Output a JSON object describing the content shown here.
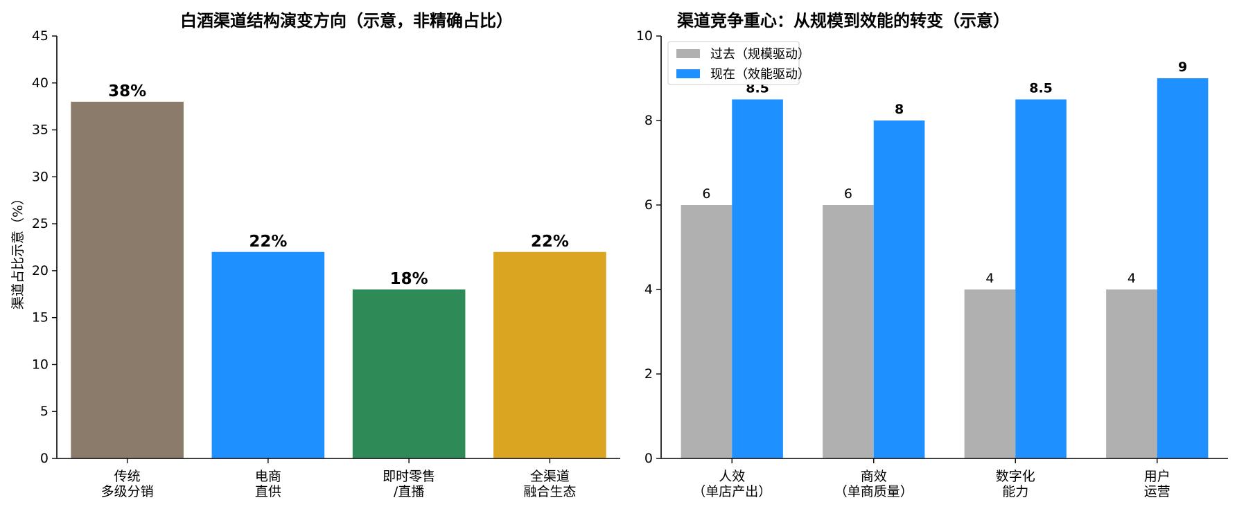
{
  "chart_data": [
    {
      "type": "bar",
      "title": "白酒渠道结构演变方向（示意，非精确占比）",
      "ylabel": "渠道占比示意（%）",
      "xlabel": "",
      "ylim": [
        0,
        45
      ],
      "yticks": [
        "0",
        "5",
        "10",
        "15",
        "20",
        "25",
        "30",
        "35",
        "40",
        "45"
      ],
      "categories": [
        [
          "传统",
          "多级分销"
        ],
        [
          "电商",
          "直供"
        ],
        [
          "即时零售",
          "/直播"
        ],
        [
          "全渠道",
          "融合生态"
        ]
      ],
      "values": [
        38,
        22,
        18,
        22
      ],
      "value_labels": [
        "38%",
        "22%",
        "18%",
        "22%"
      ],
      "colors": [
        "#8b7b6a",
        "#1e90ff",
        "#2e8b57",
        "#daa520"
      ],
      "grid": false,
      "legend": "none"
    },
    {
      "type": "bar",
      "title": "渠道竞争重心：从规模到效能的转变（示意）",
      "xlabel": "",
      "ylabel": "",
      "ylim": [
        0,
        10
      ],
      "yticks": [
        "0",
        "2",
        "4",
        "6",
        "8",
        "10"
      ],
      "categories": [
        [
          "人效",
          "（单店产出）"
        ],
        [
          "商效",
          "（单商质量）"
        ],
        [
          "数字化",
          "能力"
        ],
        [
          "用户",
          "运营"
        ]
      ],
      "series": [
        {
          "name": "过去（规模驱动）",
          "values": [
            6,
            6,
            4,
            4
          ],
          "value_labels": [
            "6",
            "6",
            "4",
            "4"
          ],
          "color": "#b0b0b0"
        },
        {
          "name": "现在（效能驱动）",
          "values": [
            8.5,
            8,
            8.5,
            9
          ],
          "value_labels": [
            "8.5",
            "8",
            "8.5",
            "9"
          ],
          "color": "#1e90ff"
        }
      ],
      "grid": false,
      "legend": "top-left"
    }
  ]
}
